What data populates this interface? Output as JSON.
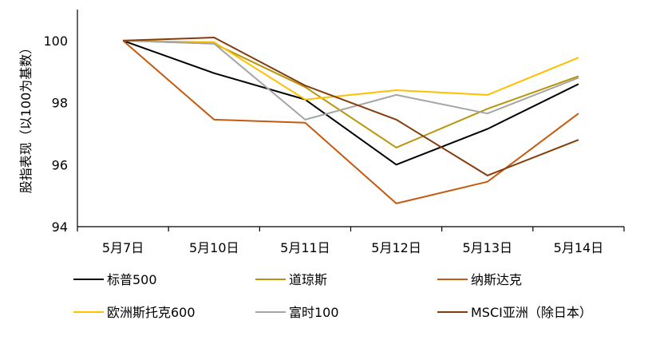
{
  "chart_data": {
    "type": "line",
    "title": "",
    "ylabel": "股指表现（以100为基数）",
    "xlabel": "",
    "categories": [
      "5月7日",
      "5月10日",
      "5月11日",
      "5月12日",
      "5月13日",
      "5月14日"
    ],
    "ylim": [
      94,
      101
    ],
    "yticks": [
      94,
      96,
      98,
      100
    ],
    "grid": false,
    "legend_position": "bottom",
    "series": [
      {
        "name": "标普500",
        "color": "#000000",
        "values": [
          100.0,
          98.95,
          98.1,
          96.0,
          97.15,
          98.6
        ]
      },
      {
        "name": "道琼斯",
        "color": "#B8960C",
        "values": [
          100.0,
          99.9,
          98.5,
          96.55,
          97.8,
          98.85
        ]
      },
      {
        "name": "纳斯达克",
        "color": "#C55A11",
        "values": [
          100.0,
          97.45,
          97.35,
          94.75,
          95.45,
          97.65
        ]
      },
      {
        "name": "欧洲斯托克600",
        "color": "#FFC000",
        "values": [
          100.0,
          99.95,
          98.1,
          98.4,
          98.25,
          99.45
        ]
      },
      {
        "name": "富时100",
        "color": "#A5A5A5",
        "values": [
          100.0,
          99.9,
          97.45,
          98.25,
          97.65,
          98.8
        ]
      },
      {
        "name": "MSCI亚洲（除日本）",
        "color": "#843C0C",
        "values": [
          100.0,
          100.1,
          98.55,
          97.45,
          95.65,
          96.8
        ]
      }
    ]
  }
}
